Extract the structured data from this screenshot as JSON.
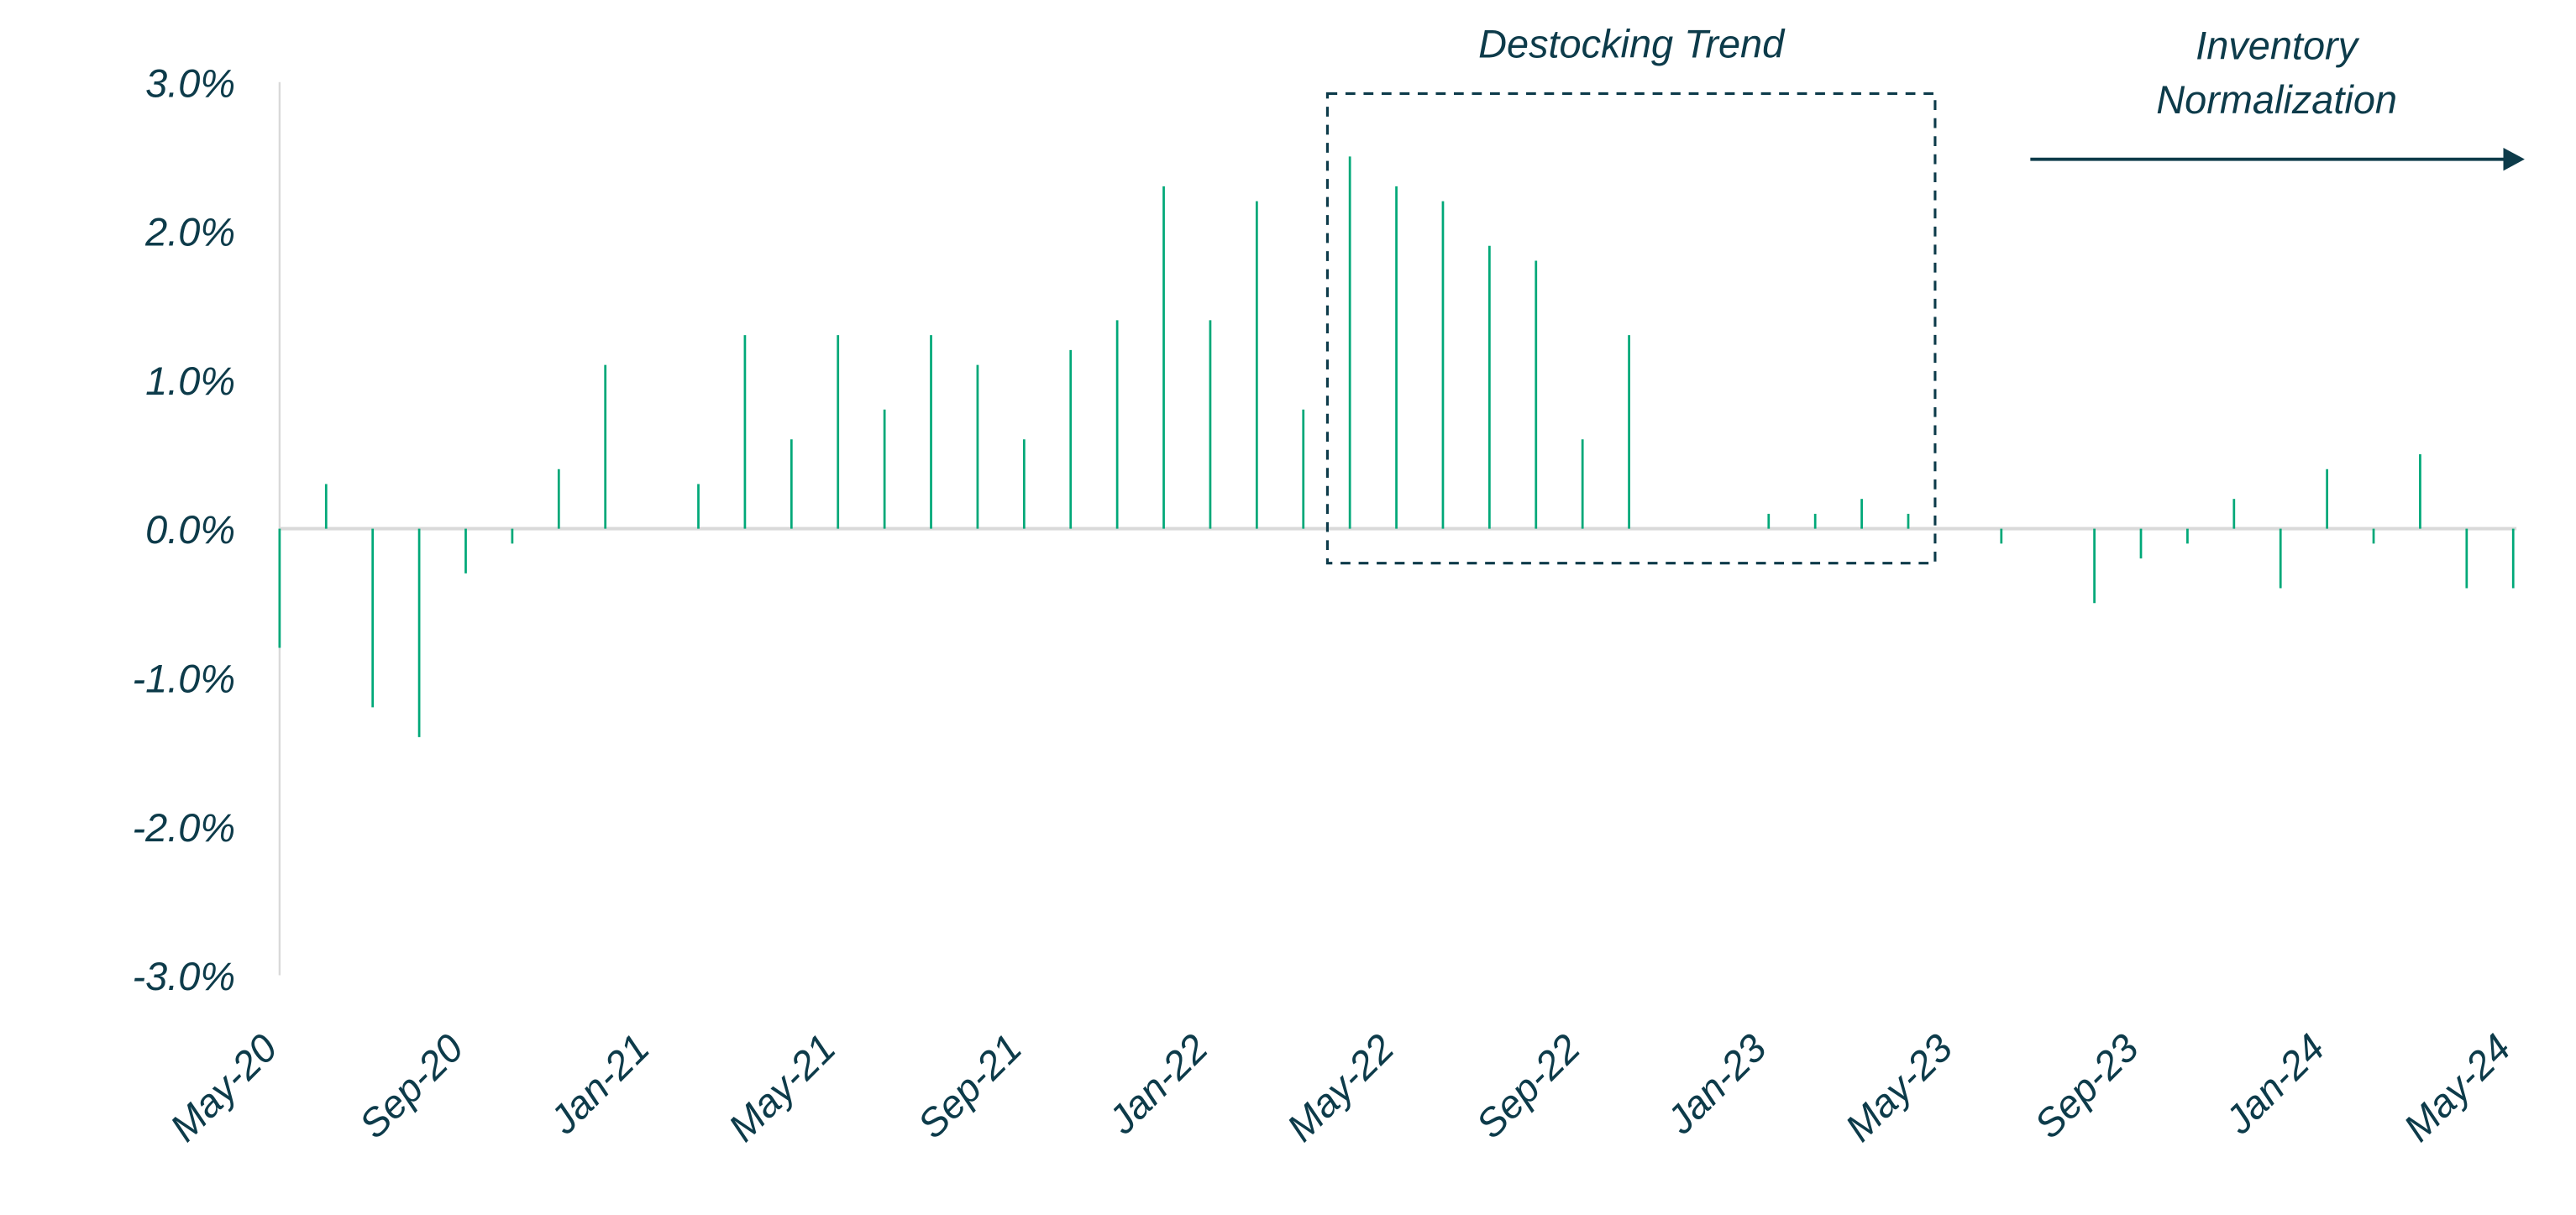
{
  "chart_data": {
    "type": "bar",
    "title": "",
    "xlabel": "",
    "ylabel": "",
    "ylim": [
      -3.0,
      3.0
    ],
    "yticks": [
      "3.0%",
      "2.0%",
      "1.0%",
      "0.0%",
      "-1.0%",
      "-2.0%",
      "-3.0%"
    ],
    "ytick_values": [
      3,
      2,
      1,
      0,
      -1,
      -2,
      -3
    ],
    "xtick_labels": [
      "May-20",
      "Sep-20",
      "Jan-21",
      "May-21",
      "Sep-21",
      "Jan-22",
      "May-22",
      "Sep-22",
      "Jan-23",
      "May-23",
      "Sep-23",
      "Jan-24",
      "May-24"
    ],
    "grid": false,
    "bar_color": "#00a878",
    "annotation_color": "#0d3b4a",
    "categories": [
      "May-20",
      "Jun-20",
      "Jul-20",
      "Aug-20",
      "Sep-20",
      "Oct-20",
      "Nov-20",
      "Dec-20",
      "Jan-21",
      "Feb-21",
      "Mar-21",
      "Apr-21",
      "May-21",
      "Jun-21",
      "Jul-21",
      "Aug-21",
      "Sep-21",
      "Oct-21",
      "Nov-21",
      "Dec-21",
      "Jan-22",
      "Feb-22",
      "Mar-22",
      "Apr-22",
      "May-22",
      "Jun-22",
      "Jul-22",
      "Aug-22",
      "Sep-22",
      "Oct-22",
      "Nov-22",
      "Dec-22",
      "Jan-23",
      "Feb-23",
      "Mar-23",
      "Apr-23",
      "May-23",
      "Jun-23",
      "Jul-23",
      "Aug-23",
      "Sep-23",
      "Oct-23",
      "Nov-23",
      "Dec-23",
      "Jan-24",
      "Feb-24",
      "Mar-24",
      "Apr-24",
      "May-24"
    ],
    "values": [
      -0.8,
      0.3,
      -1.2,
      -1.4,
      -0.3,
      -0.1,
      0.4,
      1.1,
      0.0,
      0.3,
      1.3,
      0.6,
      1.3,
      0.8,
      1.3,
      1.1,
      0.6,
      1.2,
      1.4,
      2.3,
      1.4,
      2.2,
      0.8,
      2.5,
      2.3,
      2.2,
      1.9,
      1.8,
      0.6,
      1.3,
      0.0,
      0.0,
      0.1,
      0.1,
      0.2,
      0.1,
      0.0,
      -0.1,
      0.0,
      -0.5,
      -0.2,
      -0.1,
      0.2,
      -0.4,
      0.4,
      -0.1,
      0.5,
      -0.4,
      -0.4
    ],
    "annotations": {
      "destocking_label": "Destocking Trend",
      "normalization_label_line1": "Inventory",
      "normalization_label_line2": "Normalization"
    }
  }
}
